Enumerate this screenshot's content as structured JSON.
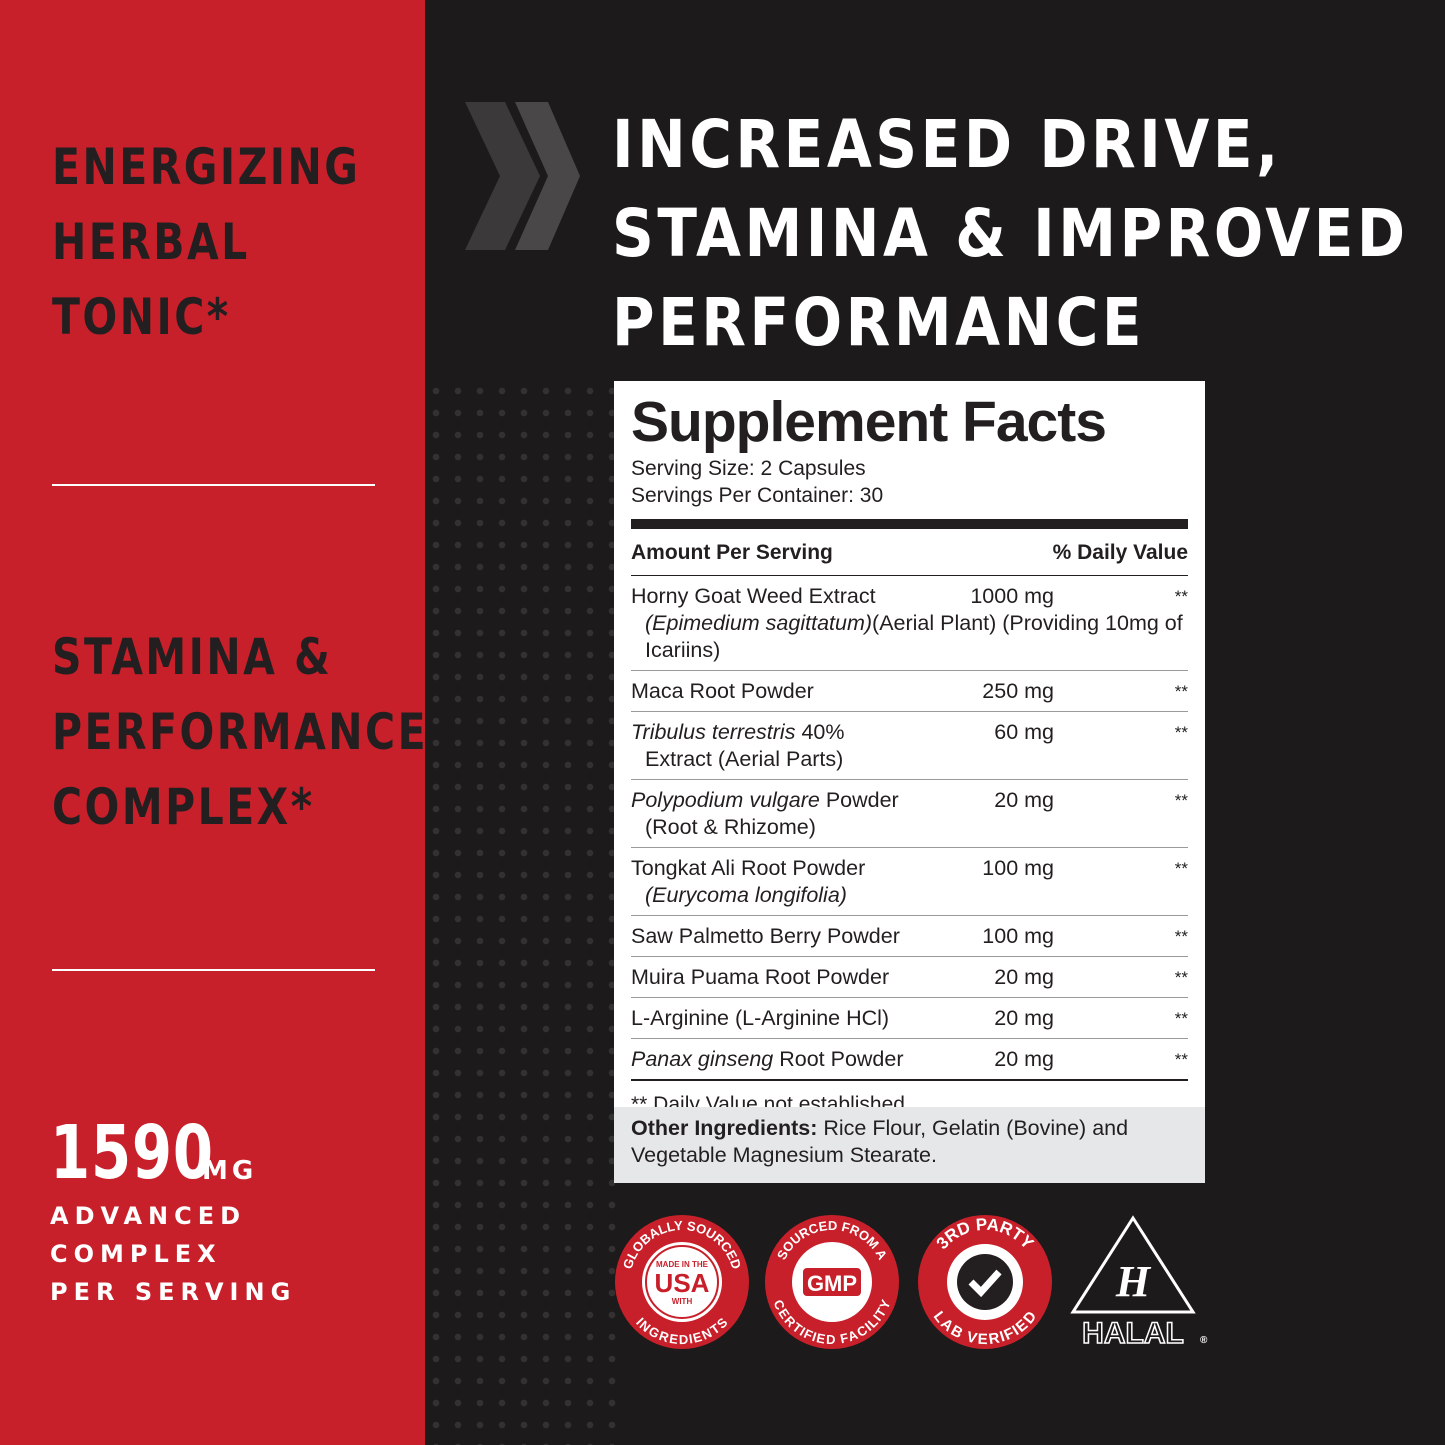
{
  "left": {
    "block1": [
      "ENERGIZING",
      "HERBAL",
      "TONIC*"
    ],
    "block2": [
      "STAMINA &",
      "PERFORMANCE",
      "COMPLEX*"
    ],
    "dose": {
      "number": "1590",
      "unit": "MG",
      "lines": [
        "ADVANCED",
        "COMPLEX",
        "PER SERVING"
      ]
    }
  },
  "headline": [
    "INCREASED DRIVE,",
    "STAMINA & IMPROVED",
    "PERFORMANCE"
  ],
  "facts": {
    "title": "Supplement Facts",
    "serving_size": "Serving Size: 2 Capsules",
    "servings_per_container": "Servings Per Container: 30",
    "header": {
      "amount": "Amount Per Serving",
      "dv": "% Daily Value"
    },
    "rows": [
      {
        "name": [
          {
            "text": "Horny Goat Weed Extract",
            "italic": false
          }
        ],
        "amount": "1000 mg",
        "dv": "**",
        "detail": [
          {
            "text": "(Epimedium sagittatum)",
            "italic": true
          },
          {
            "text": "(Aerial Plant) (Providing 10mg of Icariins)",
            "italic": false
          }
        ]
      },
      {
        "name": [
          {
            "text": "Maca Root Powder",
            "italic": false
          }
        ],
        "amount": "250 mg",
        "dv": "**"
      },
      {
        "name": [
          {
            "text": "Tribulus terrestris",
            "italic": true
          },
          {
            "text": " 40%",
            "italic": false
          }
        ],
        "amount": "60 mg",
        "dv": "**",
        "detail": [
          {
            "text": "Extract (Aerial Parts)",
            "italic": false
          }
        ]
      },
      {
        "name": [
          {
            "text": "Polypodium vulgare",
            "italic": true
          },
          {
            "text": " Powder",
            "italic": false
          }
        ],
        "amount": "20 mg",
        "dv": "**",
        "detail": [
          {
            "text": "(Root & Rhizome)",
            "italic": false
          }
        ]
      },
      {
        "name": [
          {
            "text": "Tongkat Ali Root Powder",
            "italic": false
          }
        ],
        "amount": "100 mg",
        "dv": "**",
        "detail": [
          {
            "text": "(Eurycoma longifolia)",
            "italic": true
          }
        ]
      },
      {
        "name": [
          {
            "text": "Saw Palmetto Berry Powder",
            "italic": false
          }
        ],
        "amount": "100 mg",
        "dv": "**"
      },
      {
        "name": [
          {
            "text": "Muira Puama Root Powder",
            "italic": false
          }
        ],
        "amount": "20 mg",
        "dv": "**"
      },
      {
        "name": [
          {
            "text": "L-Arginine (L-Arginine HCl)",
            "italic": false
          }
        ],
        "amount": "20 mg",
        "dv": "**"
      },
      {
        "name": [
          {
            "text": "Panax ginseng",
            "italic": true
          },
          {
            "text": " Root Powder",
            "italic": false
          }
        ],
        "amount": "20 mg",
        "dv": "**"
      }
    ],
    "footnote": "** Daily Value not established.",
    "other_label": "Other Ingredients:",
    "other_text": " Rice Flour, Gelatin (Bovine) and Vegetable Magnesium Stearate."
  },
  "badges": {
    "usa": {
      "top": "GLOBALLY SOURCED",
      "line1": "MADE IN THE",
      "big": "USA",
      "line2": "WITH",
      "bottom": "INGREDIENTS"
    },
    "gmp": {
      "top": "SOURCED FROM A",
      "big": "GMP",
      "bottom": "CERTIFIED FACILITY"
    },
    "lab": {
      "top": "3RD PARTY",
      "bottom": "LAB VERIFIED"
    },
    "halal": {
      "mark": "H",
      "text": "HALAL",
      "reg": "®"
    }
  }
}
